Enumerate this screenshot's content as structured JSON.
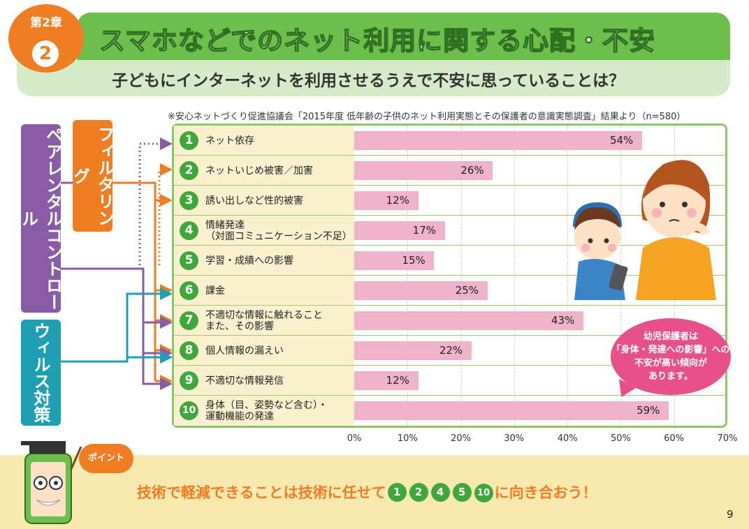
{
  "header": {
    "chapter_label": "第2章",
    "chapter_number": "2",
    "title": "スマホなどでのネット利用に関する心配・不安",
    "subtitle": "子どもにインターネットを利用させるうえで不安に思っていることは？",
    "source": "※安心ネットづくり促進協議会「2015年度 低年齢の子供のネット利用実態とその保護者の意識実態調査」結果より（n=580）"
  },
  "categories_left": {
    "parental": "ペアレンタルコントロール",
    "filtering": "フィルタリング",
    "virus": "ウィルス対策"
  },
  "chart_data": {
    "type": "bar",
    "orientation": "horizontal",
    "categories": [
      {
        "num": "1",
        "label": "ネット依存"
      },
      {
        "num": "2",
        "label": "ネットいじめ被害／加害"
      },
      {
        "num": "3",
        "label": "誘い出しなど性的被害"
      },
      {
        "num": "4",
        "label": "情緒発達\n（対面コミュニケーション不足）"
      },
      {
        "num": "5",
        "label": "学習・成績への影響"
      },
      {
        "num": "6",
        "label": "課金"
      },
      {
        "num": "7",
        "label": "不適切な情報に触れること\nまた、その影響"
      },
      {
        "num": "8",
        "label": "個人情報の漏えい"
      },
      {
        "num": "9",
        "label": "不適切な情報発信"
      },
      {
        "num": "10",
        "label": "身体（目、姿勢など含む）・\n運動機能の発達"
      }
    ],
    "values": [
      54,
      26,
      12,
      17,
      15,
      25,
      43,
      22,
      12,
      59
    ],
    "value_labels": [
      "54%",
      "26%",
      "12%",
      "17%",
      "15%",
      "25%",
      "43%",
      "22%",
      "12%",
      "59%"
    ],
    "xlim": [
      0,
      70
    ],
    "xticks": [
      "0%",
      "10%",
      "20%",
      "30%",
      "40%",
      "50%",
      "60%",
      "70%"
    ],
    "bar_color": "#f1b2cb",
    "grid": true
  },
  "bubble": {
    "line1": "幼児保護者は",
    "line2": "「身体・発達への影響」への",
    "line3": "不安が高い傾向が",
    "line4": "あります。"
  },
  "point": {
    "badge": "ポイント",
    "msg_before": "技術で軽減できることは技術に任せて",
    "numbers": [
      "1",
      "2",
      "4",
      "5",
      "10"
    ],
    "msg_after": "に向き合おう！"
  },
  "page_number": "9",
  "colors": {
    "green": "#6cbf4a",
    "orange": "#ef7d22",
    "purple": "#8a5ca8",
    "teal": "#1f9fb4",
    "pink": "#e8508b"
  }
}
